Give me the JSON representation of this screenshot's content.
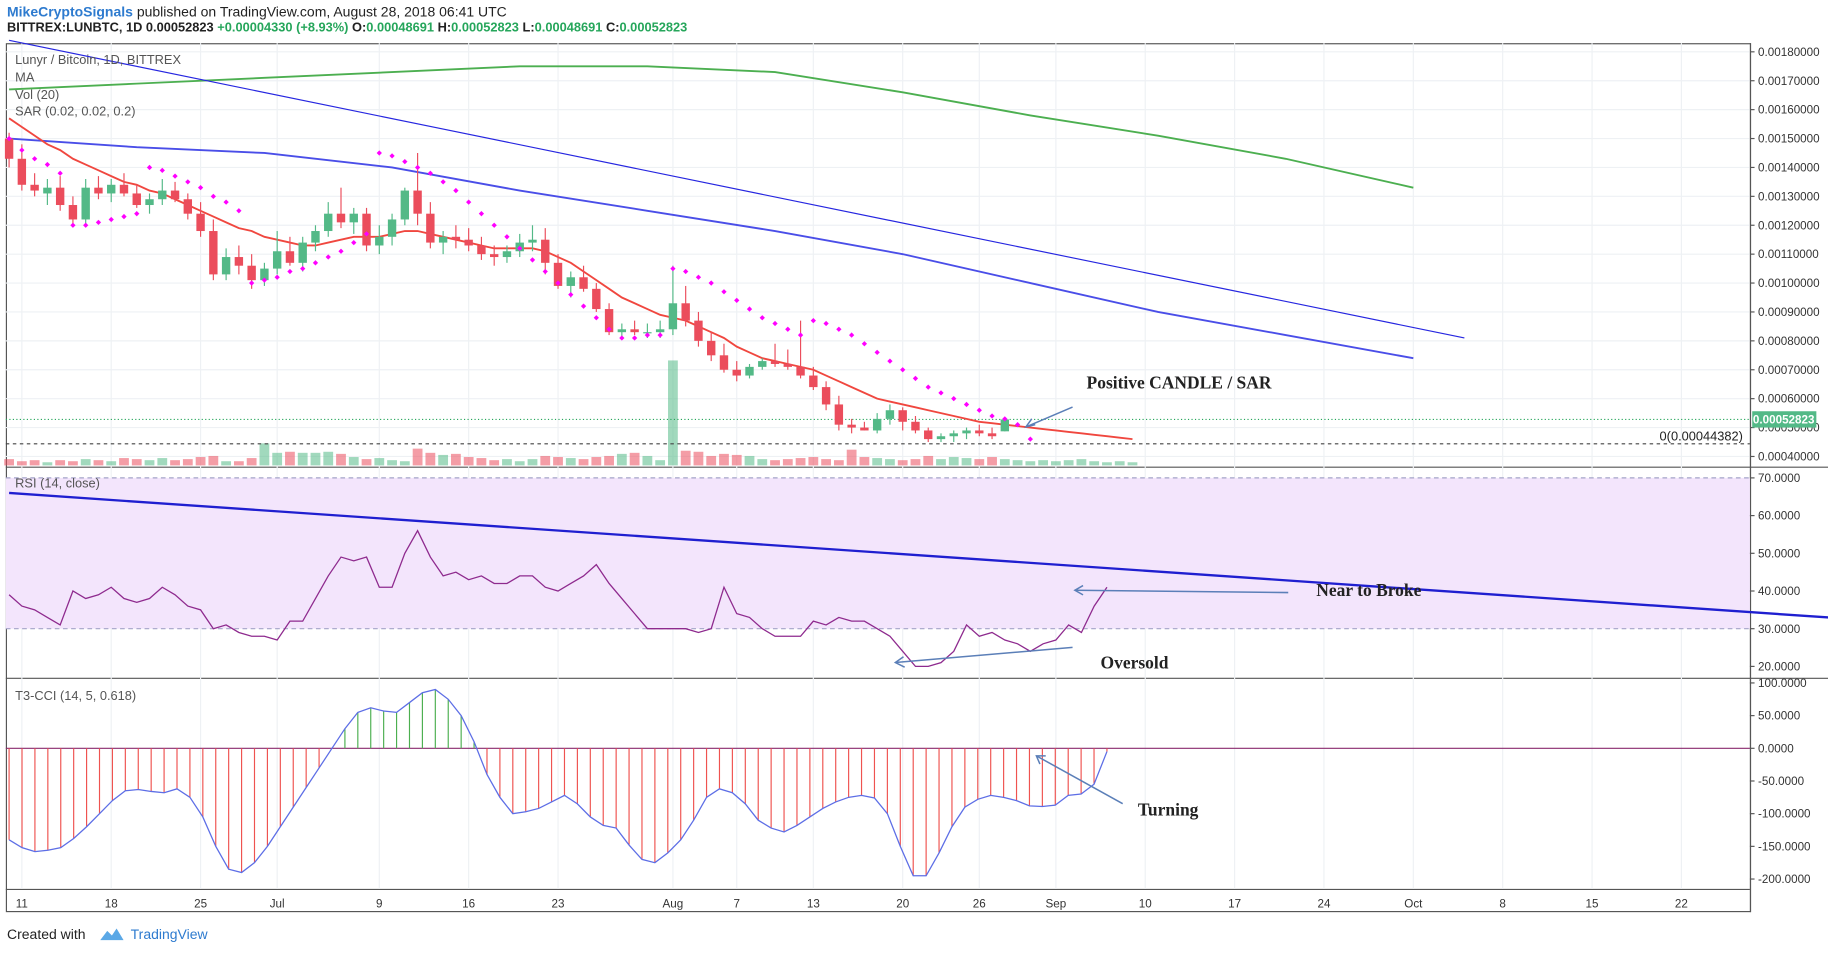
{
  "header": {
    "author": "MikeCryptoSignals",
    "published": "published on TradingView.com, August 28, 2018 06:41 UTC",
    "symbol": "BITTREX:LUNBTC, 1D",
    "last": "0.00052823",
    "change": "+0.00004330 (+8.93%)",
    "o_label": "O:",
    "o": "0.00048691",
    "h_label": "H:",
    "h": "0.00052823",
    "l_label": "L:",
    "l": "0.00048691",
    "c_label": "C:",
    "c": "0.00052823"
  },
  "main_legend": {
    "title": "Lunyr / Bitcoin, 1D, BITTREX",
    "ma": "MA",
    "vol": "Vol (20)",
    "sar": "SAR (0.02, 0.02, 0.2)"
  },
  "rsi_legend": "RSI (14, close)",
  "cci_legend": "T3-CCI (14, 5, 0.618)",
  "annotations": {
    "positive": "Positive CANDLE / SAR",
    "near": "Near to Broke",
    "oversold": "Oversold",
    "turning": "Turning"
  },
  "price_tag": "0.00052823",
  "fib_label": "0(0.00044382)",
  "footer": {
    "created": "Created with",
    "brand": "TradingView"
  },
  "colors": {
    "up": "#53b987",
    "down": "#eb4d5c",
    "sar": "#ff00ff",
    "ma_red": "#f0473f",
    "ma_blue": "#4a4ee8",
    "ma_green": "#4caf50",
    "trend": "#2626e0",
    "rsi": "#8e2a8e",
    "rsi_band": "#f3e5fc",
    "cci": "#5d6ee6",
    "tag": "#53b987"
  },
  "chart_data": [
    {
      "type": "candlestick",
      "title": "Lunyr / Bitcoin, 1D, BITTREX",
      "x_ticks": [
        "11",
        "18",
        "25",
        "Jul",
        "9",
        "16",
        "23",
        "Aug",
        "7",
        "13",
        "20",
        "26",
        "Sep",
        "10",
        "17",
        "24",
        "Oct",
        "8",
        "15",
        "22"
      ],
      "y_ticks": [
        "0.00180000",
        "0.00170000",
        "0.00160000",
        "0.00150000",
        "0.00140000",
        "0.00130000",
        "0.00120000",
        "0.00110000",
        "0.00100000",
        "0.00090000",
        "0.00080000",
        "0.00070000",
        "0.00060000",
        "0.00050000",
        "0.00040000"
      ],
      "ylim": [
        0.000365,
        0.00183
      ],
      "first_date": "2018-06-10",
      "candles": [
        [
          0.0015,
          0.00152,
          0.0014,
          0.00143
        ],
        [
          0.00143,
          0.00148,
          0.00132,
          0.00134
        ],
        [
          0.00134,
          0.00138,
          0.0013,
          0.00132
        ],
        [
          0.00131,
          0.00136,
          0.00127,
          0.00133
        ],
        [
          0.00133,
          0.00137,
          0.00125,
          0.00127
        ],
        [
          0.00127,
          0.0013,
          0.0012,
          0.00122
        ],
        [
          0.00122,
          0.00136,
          0.0012,
          0.00133
        ],
        [
          0.00133,
          0.00137,
          0.00129,
          0.00131
        ],
        [
          0.00131,
          0.00136,
          0.00128,
          0.00134
        ],
        [
          0.00134,
          0.00138,
          0.0013,
          0.00131
        ],
        [
          0.00131,
          0.00134,
          0.00126,
          0.00127
        ],
        [
          0.00127,
          0.00131,
          0.00124,
          0.00129
        ],
        [
          0.00129,
          0.00136,
          0.00127,
          0.00132
        ],
        [
          0.00132,
          0.00135,
          0.00128,
          0.00129
        ],
        [
          0.00129,
          0.00131,
          0.00122,
          0.00124
        ],
        [
          0.00124,
          0.00128,
          0.00116,
          0.00118
        ],
        [
          0.00118,
          0.00122,
          0.00101,
          0.00103
        ],
        [
          0.00103,
          0.00112,
          0.00101,
          0.00109
        ],
        [
          0.00109,
          0.00113,
          0.00103,
          0.00106
        ],
        [
          0.00106,
          0.0011,
          0.00098,
          0.00101
        ],
        [
          0.00101,
          0.00107,
          0.00099,
          0.00105
        ],
        [
          0.00105,
          0.00118,
          0.00103,
          0.00111
        ],
        [
          0.00111,
          0.00116,
          0.00106,
          0.00107
        ],
        [
          0.00107,
          0.00116,
          0.00104,
          0.00114
        ],
        [
          0.00114,
          0.0012,
          0.00111,
          0.00118
        ],
        [
          0.00118,
          0.00128,
          0.00116,
          0.00124
        ],
        [
          0.00124,
          0.00133,
          0.00119,
          0.00121
        ],
        [
          0.00121,
          0.00126,
          0.00117,
          0.00124
        ],
        [
          0.00124,
          0.00126,
          0.00111,
          0.00113
        ],
        [
          0.00113,
          0.0012,
          0.0011,
          0.00116
        ],
        [
          0.00116,
          0.00124,
          0.00113,
          0.00122
        ],
        [
          0.00122,
          0.00133,
          0.0012,
          0.00132
        ],
        [
          0.00132,
          0.00145,
          0.0012,
          0.00124
        ],
        [
          0.00124,
          0.00128,
          0.00112,
          0.00114
        ],
        [
          0.00114,
          0.00118,
          0.0011,
          0.00116
        ],
        [
          0.00116,
          0.0012,
          0.00112,
          0.00115
        ],
        [
          0.00115,
          0.00119,
          0.00111,
          0.00113
        ],
        [
          0.00113,
          0.00116,
          0.00108,
          0.0011
        ],
        [
          0.0011,
          0.00113,
          0.00106,
          0.00109
        ],
        [
          0.00109,
          0.00113,
          0.00107,
          0.00111
        ],
        [
          0.00111,
          0.00117,
          0.00109,
          0.00114
        ],
        [
          0.00114,
          0.0012,
          0.00111,
          0.00115
        ],
        [
          0.00115,
          0.00119,
          0.00103,
          0.00107
        ],
        [
          0.00107,
          0.0011,
          0.00098,
          0.00099
        ],
        [
          0.00099,
          0.00104,
          0.00095,
          0.00102
        ],
        [
          0.00102,
          0.00106,
          0.00097,
          0.00098
        ],
        [
          0.00098,
          0.001,
          0.0009,
          0.00091
        ],
        [
          0.00091,
          0.00093,
          0.00082,
          0.00083
        ],
        [
          0.00083,
          0.00086,
          0.00081,
          0.00084
        ],
        [
          0.00084,
          0.00087,
          0.00082,
          0.00083
        ],
        [
          0.00083,
          0.00086,
          0.00081,
          0.00083
        ],
        [
          0.00083,
          0.00087,
          0.00081,
          0.00084
        ],
        [
          0.00084,
          0.00106,
          0.00082,
          0.00093
        ],
        [
          0.00093,
          0.00099,
          0.00085,
          0.00087
        ],
        [
          0.00087,
          0.0009,
          0.00078,
          0.0008
        ],
        [
          0.0008,
          0.00083,
          0.00073,
          0.00075
        ],
        [
          0.00075,
          0.00079,
          0.00069,
          0.0007
        ],
        [
          0.0007,
          0.00073,
          0.00066,
          0.00068
        ],
        [
          0.00068,
          0.00072,
          0.00067,
          0.00071
        ],
        [
          0.00071,
          0.00074,
          0.0007,
          0.00073
        ],
        [
          0.00073,
          0.00079,
          0.00071,
          0.00072
        ],
        [
          0.00072,
          0.00077,
          0.0007,
          0.00071
        ],
        [
          0.00071,
          0.00087,
          0.00067,
          0.00068
        ],
        [
          0.00068,
          0.00071,
          0.00063,
          0.00064
        ],
        [
          0.00064,
          0.00066,
          0.00056,
          0.00058
        ],
        [
          0.00058,
          0.00061,
          0.00049,
          0.00051
        ],
        [
          0.00051,
          0.00053,
          0.00048,
          0.0005
        ],
        [
          0.0005,
          0.00052,
          0.00049,
          0.00049
        ],
        [
          0.00049,
          0.00055,
          0.00048,
          0.00053
        ],
        [
          0.00053,
          0.00058,
          0.00051,
          0.00056
        ],
        [
          0.00056,
          0.00057,
          0.00049,
          0.00052
        ],
        [
          0.00052,
          0.00054,
          0.00048,
          0.00049
        ],
        [
          0.00049,
          0.0005,
          0.00045,
          0.00046
        ],
        [
          0.00046,
          0.00048,
          0.00045,
          0.00047
        ],
        [
          0.00047,
          0.00049,
          0.00045,
          0.00048
        ],
        [
          0.00048,
          0.0005,
          0.00046,
          0.00049
        ],
        [
          0.00049,
          0.00051,
          0.00047,
          0.00048
        ],
        [
          0.00048,
          0.0005,
          0.00046,
          0.00047
        ],
        [
          0.000487,
          0.000528,
          0.000487,
          0.000528
        ]
      ],
      "volume": [
        6,
        4,
        5,
        3,
        5,
        4,
        6,
        5,
        4,
        7,
        6,
        5,
        7,
        5,
        6,
        8,
        9,
        4,
        4,
        7,
        21,
        12,
        13,
        12,
        12,
        13,
        11,
        8,
        6,
        7,
        5,
        4,
        16,
        12,
        10,
        11,
        8,
        7,
        5,
        6,
        4,
        6,
        9,
        8,
        7,
        6,
        8,
        9,
        11,
        12,
        9,
        5,
        100,
        14,
        13,
        9,
        11,
        10,
        9,
        6,
        5,
        6,
        7,
        8,
        6,
        5,
        15,
        8,
        7,
        6,
        5,
        6,
        9,
        6,
        8,
        7,
        6,
        8,
        6,
        5,
        4,
        5,
        4,
        5,
        6,
        4,
        3,
        4,
        3
      ],
      "ma_red": [
        0.00157,
        0.00154,
        0.00151,
        0.00148,
        0.00146,
        0.00143,
        0.00141,
        0.00139,
        0.00137,
        0.00135,
        0.00134,
        0.00132,
        0.00131,
        0.00129,
        0.00127,
        0.00125,
        0.00123,
        0.00121,
        0.00119,
        0.00118,
        0.00116,
        0.00115,
        0.00114,
        0.00113,
        0.00113,
        0.00114,
        0.00115,
        0.00116,
        0.00116,
        0.00116,
        0.00117,
        0.00118,
        0.00118,
        0.00117,
        0.00116,
        0.00115,
        0.00114,
        0.00113,
        0.00112,
        0.00112,
        0.00112,
        0.00112,
        0.00111,
        0.00109,
        0.00107,
        0.00104,
        0.00101,
        0.00098,
        0.00095,
        0.00093,
        0.00091,
        0.00089,
        0.00088,
        0.00087,
        0.00085,
        0.00083,
        0.00081,
        0.00078,
        0.00076,
        0.00074,
        0.00073,
        0.00072,
        0.00071,
        0.0007,
        0.00068,
        0.00066,
        0.00064,
        0.00062,
        0.0006,
        0.00059,
        0.00058,
        0.00057,
        0.00056,
        0.00055,
        0.00054,
        0.00053,
        0.00052,
        0.000515,
        0.00051,
        0.000505,
        0.0005,
        0.000495,
        0.00049,
        0.000485,
        0.00048,
        0.000475,
        0.00047,
        0.000465,
        0.00046
      ],
      "sar": [
        0.0015,
        0.00146,
        0.00143,
        0.00141,
        0.00138,
        0.0012,
        0.0012,
        0.00121,
        0.00122,
        0.00123,
        0.00124,
        0.0014,
        0.00139,
        0.00137,
        0.00135,
        0.00133,
        0.0013,
        0.00128,
        0.00125,
        0.001,
        0.00101,
        0.00102,
        0.00104,
        0.00105,
        0.00107,
        0.00109,
        0.00111,
        0.00114,
        0.00117,
        0.00145,
        0.00144,
        0.00142,
        0.0014,
        0.00138,
        0.00135,
        0.00132,
        0.00128,
        0.00124,
        0.0012,
        0.00116,
        0.00112,
        0.00108,
        0.00104,
        0.001,
        0.00096,
        0.00092,
        0.00088,
        0.00084,
        0.00081,
        0.00081,
        0.00082,
        0.00082,
        0.00105,
        0.00104,
        0.00102,
        0.001,
        0.00097,
        0.00094,
        0.00091,
        0.00088,
        0.00086,
        0.00084,
        0.00082,
        0.00087,
        0.00086,
        0.00084,
        0.00082,
        0.00079,
        0.00076,
        0.00073,
        0.0007,
        0.00067,
        0.00064,
        0.00062,
        0.0006,
        0.00058,
        0.00056,
        0.00054,
        0.00053,
        0.00051,
        0.00046
      ],
      "ma_blue": [
        [
          0,
          0.0015
        ],
        [
          10,
          0.00147
        ],
        [
          20,
          0.00145
        ],
        [
          30,
          0.0014
        ],
        [
          40,
          0.00132
        ],
        [
          50,
          0.00125
        ],
        [
          60,
          0.00118
        ],
        [
          70,
          0.0011
        ],
        [
          80,
          0.001
        ],
        [
          90,
          0.0009
        ],
        [
          100,
          0.00082
        ],
        [
          110,
          0.00074
        ]
      ],
      "ma_green": [
        [
          0,
          0.00167
        ],
        [
          10,
          0.00169
        ],
        [
          20,
          0.00171
        ],
        [
          30,
          0.00173
        ],
        [
          40,
          0.00175
        ],
        [
          45,
          0.00175
        ],
        [
          50,
          0.00175
        ],
        [
          60,
          0.00173
        ],
        [
          70,
          0.00166
        ],
        [
          80,
          0.00158
        ],
        [
          90,
          0.00151
        ],
        [
          100,
          0.00143
        ],
        [
          110,
          0.00133
        ]
      ],
      "trendline": [
        [
          0,
          0.00184
        ],
        [
          114,
          0.00081
        ]
      ],
      "last_price": 0.00052823,
      "fib_level": 0.00044382
    },
    {
      "type": "line",
      "title": "RSI (14, close)",
      "y_ticks": [
        "70.0000",
        "60.0000",
        "50.0000",
        "40.0000",
        "30.0000",
        "20.0000"
      ],
      "ylim": [
        17,
        73
      ],
      "band": [
        30,
        70
      ],
      "values": [
        39,
        36,
        35,
        33,
        31,
        40,
        38,
        39,
        41,
        38,
        37,
        38,
        41,
        39,
        36,
        35,
        30,
        31,
        29,
        28,
        28,
        27,
        32,
        32,
        38,
        44,
        49,
        48,
        49,
        41,
        41,
        50,
        56,
        49,
        44,
        45,
        43,
        44,
        42,
        42,
        44,
        44,
        41,
        40,
        42,
        44,
        47,
        42,
        38,
        34,
        30,
        30,
        30,
        30,
        29,
        30,
        41,
        34,
        33,
        30,
        28,
        28,
        28,
        32,
        31,
        33,
        32,
        32,
        30,
        28,
        24,
        20,
        20,
        21,
        24,
        31,
        28,
        29,
        27,
        26,
        24,
        26,
        27,
        31,
        29,
        36,
        41
      ],
      "trendline": [
        [
          0,
          66
        ],
        [
          164,
          28
        ]
      ]
    },
    {
      "type": "bar",
      "title": "T3-CCI (14, 5, 0.618)",
      "y_ticks": [
        "100.0000",
        "50.0000",
        "0.0000",
        "-50.0000",
        "-100.0000",
        "-150.0000",
        "-200.0000"
      ],
      "ylim": [
        -215,
        108
      ],
      "values": [
        -140,
        -152,
        -158,
        -156,
        -152,
        -138,
        -120,
        -100,
        -80,
        -65,
        -63,
        -66,
        -68,
        -62,
        -75,
        -105,
        -150,
        -185,
        -190,
        -175,
        -150,
        -120,
        -90,
        -60,
        -30,
        0,
        30,
        55,
        62,
        57,
        55,
        70,
        85,
        90,
        75,
        50,
        10,
        -40,
        -75,
        -100,
        -97,
        -92,
        -82,
        -72,
        -85,
        -105,
        -118,
        -122,
        -148,
        -170,
        -175,
        -160,
        -140,
        -110,
        -75,
        -62,
        -68,
        -85,
        -110,
        -122,
        -128,
        -118,
        -105,
        -92,
        -82,
        -75,
        -72,
        -76,
        -100,
        -150,
        -195,
        -195,
        -160,
        -120,
        -90,
        -78,
        -72,
        -75,
        -80,
        -88,
        -89,
        -87,
        -72,
        -70,
        -55,
        -5
      ]
    }
  ]
}
